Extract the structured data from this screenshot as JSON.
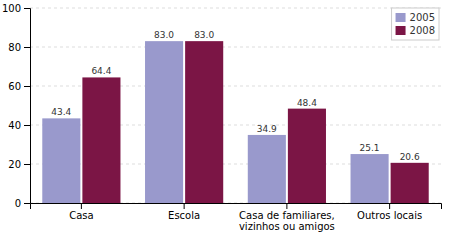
{
  "chart_data": {
    "type": "bar",
    "categories": [
      "Casa",
      "Escola",
      "Casa de familiares,\nvizinhos ou amigos",
      "Outros locais"
    ],
    "series": [
      {
        "name": "2005",
        "color": "#9999cc",
        "values": [
          43.4,
          83.0,
          34.9,
          25.1
        ],
        "value_labels": [
          "43.4",
          "83.0",
          "34.9",
          "25.1"
        ]
      },
      {
        "name": "2008",
        "color": "#7b1545",
        "values": [
          64.4,
          83.0,
          48.4,
          20.6
        ],
        "value_labels": [
          "64.4",
          "83.0",
          "48.4",
          "20.6"
        ]
      }
    ],
    "ylim": [
      0,
      100
    ],
    "yticks": [
      0,
      20,
      40,
      60,
      80,
      100
    ],
    "grid": true,
    "legend": "upper right",
    "data_labels": true
  }
}
